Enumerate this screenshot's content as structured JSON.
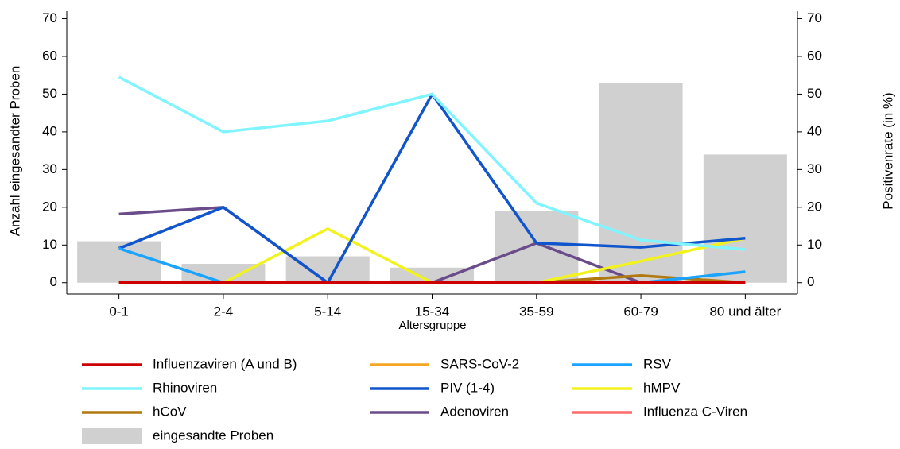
{
  "chart_data": {
    "type": "combo",
    "x_label": "Altersgruppe",
    "y_label": "Anzahl eingesandter Proben",
    "y2_label": "Positivenrate (in %)",
    "categories": [
      "0-1",
      "2-4",
      "5-14",
      "15-34",
      "35-59",
      "60-79",
      "80 und älter"
    ],
    "ylim": [
      -3,
      72
    ],
    "yticks": [
      0,
      10,
      20,
      30,
      40,
      50,
      60,
      70
    ],
    "y2lim": [
      -3,
      72
    ],
    "y2ticks": [
      0,
      10,
      20,
      30,
      40,
      50,
      60,
      70
    ],
    "series": [
      {
        "name": "Influenzaviren (A und B)",
        "type": "line",
        "axis": "y2",
        "color": "#cc0000",
        "values": [
          0,
          0,
          0,
          0,
          0,
          0,
          0
        ]
      },
      {
        "name": "SARS-CoV-2",
        "type": "line",
        "axis": "y2",
        "color": "#f5a623",
        "values": [
          0,
          0,
          0,
          0,
          0,
          0,
          0
        ]
      },
      {
        "name": "RSV",
        "type": "line",
        "axis": "y2",
        "color": "#1aa3ff",
        "values": [
          9.1,
          0,
          0,
          0,
          0,
          0,
          2.9
        ]
      },
      {
        "name": "Rhinoviren",
        "type": "line",
        "axis": "y2",
        "color": "#80f4ff",
        "values": [
          54.5,
          40,
          42.9,
          50,
          21.1,
          11.3,
          8.8
        ]
      },
      {
        "name": "PIV (1-4)",
        "type": "line",
        "axis": "y2",
        "color": "#1155cc",
        "values": [
          9.1,
          20,
          0,
          50,
          10.5,
          9.4,
          11.8
        ]
      },
      {
        "name": "hMPV",
        "type": "line",
        "axis": "y2",
        "color": "#f2f21f",
        "values": [
          0,
          0,
          14.3,
          0,
          0,
          5.7,
          11.8
        ]
      },
      {
        "name": "hCoV",
        "type": "line",
        "axis": "y2",
        "color": "#b07a10",
        "values": [
          0,
          0,
          0,
          0,
          0,
          1.9,
          0
        ]
      },
      {
        "name": "Adenoviren",
        "type": "line",
        "axis": "y2",
        "color": "#6b4c8a",
        "values": [
          18.2,
          20,
          0,
          0,
          10.5,
          0,
          0
        ]
      },
      {
        "name": "Influenza C-Viren",
        "type": "line",
        "axis": "y2",
        "color": "#ff6b6b",
        "values": [
          0,
          0,
          0,
          0,
          0,
          0,
          0
        ]
      },
      {
        "name": "eingesandte Proben",
        "type": "bar",
        "axis": "y",
        "color": "#d0d0d0",
        "values": [
          11,
          5,
          7,
          4,
          19,
          53,
          34
        ]
      }
    ]
  }
}
